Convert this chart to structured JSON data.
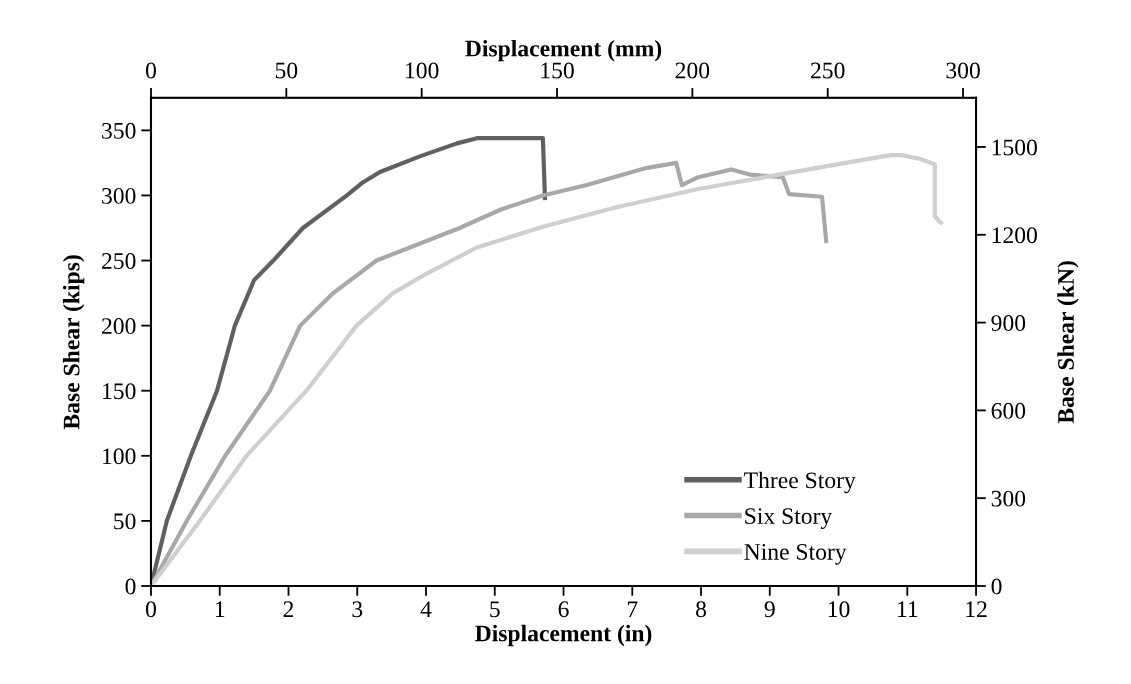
{
  "chart_data": {
    "type": "line",
    "xlabel": "Displacement (in)",
    "ylabel": "Base Shear (kips)",
    "y2label": "Base Shear (kN)",
    "x2label": "Displacement (mm)",
    "xlim": [
      0,
      12
    ],
    "xticks": [
      0,
      1,
      2,
      3,
      4,
      5,
      6,
      7,
      8,
      9,
      10,
      11,
      12
    ],
    "ylim": [
      0,
      375
    ],
    "yticks": [
      0,
      50,
      100,
      150,
      200,
      250,
      300,
      350
    ],
    "y2lim": [
      0,
      1668
    ],
    "y2ticks": [
      0,
      300,
      600,
      900,
      1200,
      1500
    ],
    "x2lim": [
      0,
      304.8
    ],
    "x2ticks": [
      0,
      50,
      100,
      150,
      200,
      250,
      300
    ],
    "grid": false,
    "legend": "bottom right",
    "marker": "none",
    "line_style": "solid",
    "series": [
      {
        "name": "Three Story",
        "color": "#606060",
        "x": [
          0,
          0.23,
          0.58,
          0.96,
          1.22,
          1.5,
          1.78,
          2.21,
          2.85,
          3.08,
          3.33,
          3.91,
          4.45,
          4.74,
          5.7,
          5.73
        ],
        "values": [
          0,
          50,
          100,
          150,
          200,
          235,
          250,
          275,
          300,
          310,
          318,
          330,
          340,
          344,
          344,
          298
        ]
      },
      {
        "name": "Six Story",
        "color": "#aaa7a7",
        "x": [
          0,
          0.52,
          1.08,
          1.73,
          2.17,
          2.65,
          3.28,
          4.49,
          5.08,
          5.7,
          6.34,
          7.2,
          7.64,
          7.72,
          7.96,
          8.44,
          8.71,
          9.19,
          9.28,
          9.76,
          9.82
        ],
        "values": [
          0,
          50,
          100,
          150,
          200,
          225,
          250,
          275,
          289,
          300,
          308,
          321,
          325,
          308,
          314,
          320,
          316,
          314,
          301,
          299,
          265
        ]
      },
      {
        "name": "Nine Story",
        "color": "#d0cece",
        "x": [
          0,
          0.71,
          1.39,
          2.26,
          2.99,
          3.52,
          4.01,
          4.74,
          5.7,
          6.77,
          7.96,
          9.03,
          10.1,
          10.76,
          10.92,
          11.19,
          11.4,
          11.4,
          11.49
        ],
        "values": [
          0,
          50,
          100,
          150,
          200,
          225,
          240,
          260,
          276,
          291,
          305,
          315,
          325,
          331,
          331,
          328,
          324,
          284,
          279
        ]
      }
    ]
  }
}
